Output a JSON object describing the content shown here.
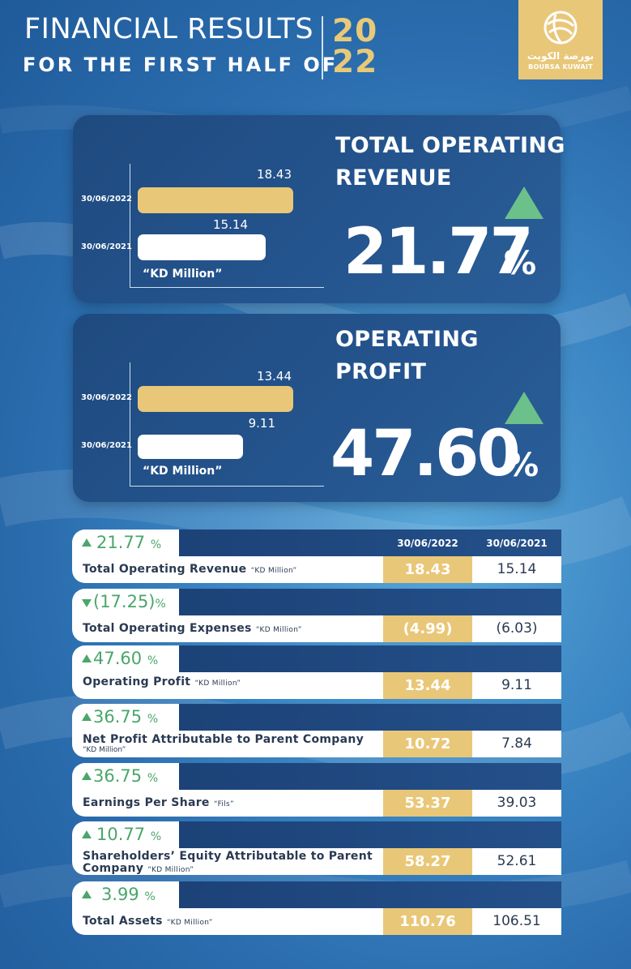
{
  "header": {
    "title_line1": "FINANCIAL RESULTS",
    "title_line2": "FOR THE FIRST HALF OF",
    "year_line1": "20",
    "year_line2": "22",
    "logo_arabic": "بورصة الكويت",
    "logo_english": "BOURSA KUWAIT"
  },
  "kpis": [
    {
      "title_line1": "TOTAL OPERATING",
      "title_line2": "REVENUE",
      "percent": "21.77",
      "percent_sign": "%",
      "trend": "up",
      "unit": "“KD Million”",
      "bars": [
        {
          "date": "30/06/2022",
          "value": 18.43,
          "label": "18.43"
        },
        {
          "date": "30/06/2021",
          "value": 15.14,
          "label": "15.14"
        }
      ]
    },
    {
      "title_line1": "OPERATING",
      "title_line2": "PROFIT",
      "percent": "47.60",
      "percent_sign": "%",
      "trend": "up",
      "unit": "“KD Million”",
      "bars": [
        {
          "date": "30/06/2022",
          "value": 13.44,
          "label": "13.44"
        },
        {
          "date": "30/06/2021",
          "value": 9.11,
          "label": "9.11"
        }
      ]
    }
  ],
  "table": {
    "columns": [
      "30/06/2022",
      "30/06/2021"
    ],
    "rows": [
      {
        "change": "21.77",
        "sign": "%",
        "trend": "up",
        "label": "Total Operating Revenue",
        "unit": "“KD Million”",
        "v2022": "18.43",
        "v2021": "15.14"
      },
      {
        "change": "(17.25)",
        "sign": "%",
        "trend": "down",
        "label": "Total Operating Expenses",
        "unit": "“KD Million”",
        "v2022": "(4.99)",
        "v2021": "(6.03)"
      },
      {
        "change": "47.60",
        "sign": "%",
        "trend": "up",
        "label": "Operating Profit",
        "unit": "“KD Million”",
        "v2022": "13.44",
        "v2021": "9.11"
      },
      {
        "change": "36.75",
        "sign": "%",
        "trend": "up",
        "label": "Net Profit Attributable to Parent Company",
        "unit": "“KD Million”",
        "v2022": "10.72",
        "v2021": "7.84"
      },
      {
        "change": "36.75",
        "sign": "%",
        "trend": "up",
        "label": "Earnings Per Share",
        "unit": "“Fils”",
        "v2022": "53.37",
        "v2021": "39.03"
      },
      {
        "change": "10.77",
        "sign": "%",
        "trend": "up",
        "label": "Shareholders’ Equity Attributable to Parent",
        "label_line2": "Company",
        "unit": "“KD Million”",
        "v2022": "58.27",
        "v2021": "52.61"
      },
      {
        "change": "3.99",
        "sign": "%",
        "trend": "up",
        "label": "Total Assets",
        "unit": "“KD Million”",
        "v2022": "110.76",
        "v2021": "106.51"
      }
    ]
  },
  "colors": {
    "gold": "#e9c778",
    "green": "#4aa66a",
    "navy": "#1e4a7f"
  }
}
